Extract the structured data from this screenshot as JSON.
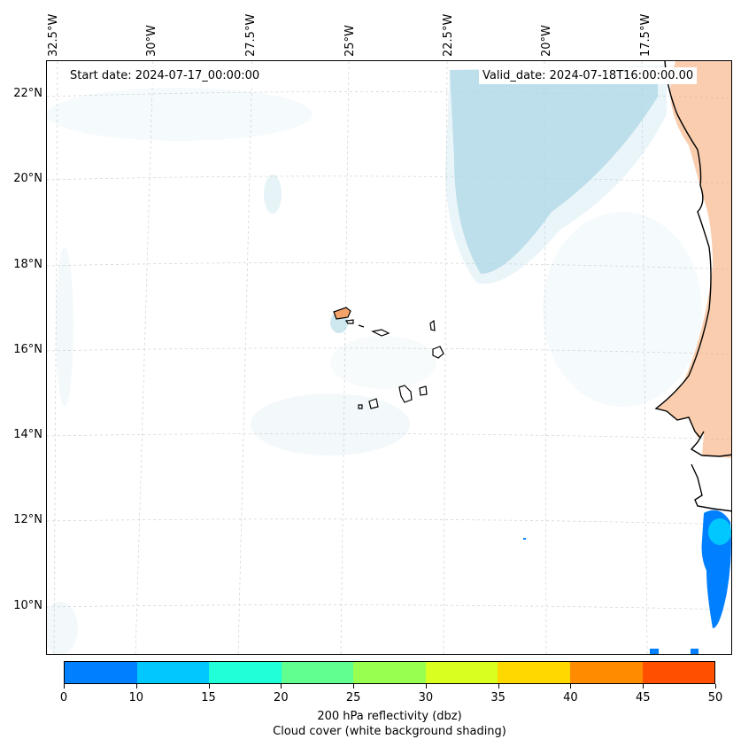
{
  "map": {
    "start_date": "Start date: 2024-07-17_00:00:00",
    "valid_date": "Valid_date: 2024-07-18T16:00:00.00",
    "lon_labels": [
      "32.5°W",
      "30°W",
      "27.5°W",
      "25°W",
      "22.5°W",
      "20°W",
      "17.5°W"
    ],
    "lat_labels": [
      "22°N",
      "20°N",
      "18°N",
      "16°N",
      "14°N",
      "12°N",
      "10°N"
    ],
    "land_color": "#f4a46b",
    "cloud_color": "#add8e6",
    "coast_color": "#000000"
  },
  "colorbar": {
    "ticks": [
      "0",
      "10",
      "15",
      "20",
      "25",
      "30",
      "35",
      "40",
      "45",
      "50"
    ],
    "colors": [
      "#0080ff",
      "#00c8ff",
      "#20ffd8",
      "#60ff90",
      "#98ff50",
      "#d8ff20",
      "#ffd800",
      "#ff8c00",
      "#ff5000"
    ],
    "label": "200 hPa reflectivity (dbz)",
    "sublabel": "Cloud cover (white background shading)"
  }
}
